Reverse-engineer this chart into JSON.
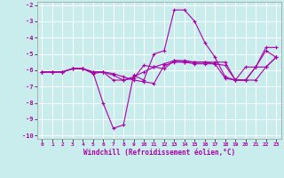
{
  "xlabel": "Windchill (Refroidissement éolien,°C)",
  "xlim": [
    -0.5,
    23.5
  ],
  "ylim": [
    -10.2,
    -1.8
  ],
  "yticks": [
    -10,
    -9,
    -8,
    -7,
    -6,
    -5,
    -4,
    -3,
    -2
  ],
  "xticks": [
    0,
    1,
    2,
    3,
    4,
    5,
    6,
    7,
    8,
    9,
    10,
    11,
    12,
    13,
    14,
    15,
    16,
    17,
    18,
    19,
    20,
    21,
    22,
    23
  ],
  "bg_color": "#c9eded",
  "line_color": "#aa00aa",
  "grid_color": "#ffffff",
  "series": [
    [
      [
        0,
        -6.1
      ],
      [
        1,
        -6.1
      ],
      [
        2,
        -6.1
      ],
      [
        3,
        -5.9
      ],
      [
        4,
        -5.9
      ],
      [
        5,
        -6.1
      ],
      [
        6,
        -8.0
      ],
      [
        7,
        -9.55
      ],
      [
        8,
        -9.35
      ],
      [
        9,
        -6.3
      ],
      [
        10,
        -6.6
      ],
      [
        11,
        -5.0
      ],
      [
        12,
        -4.8
      ],
      [
        13,
        -2.3
      ],
      [
        14,
        -2.3
      ],
      [
        15,
        -3.0
      ],
      [
        16,
        -4.3
      ],
      [
        17,
        -5.2
      ],
      [
        18,
        -6.4
      ],
      [
        19,
        -6.6
      ],
      [
        20,
        -5.8
      ],
      [
        21,
        -5.8
      ],
      [
        22,
        -4.8
      ],
      [
        23,
        -5.2
      ]
    ],
    [
      [
        0,
        -6.1
      ],
      [
        1,
        -6.1
      ],
      [
        2,
        -6.1
      ],
      [
        3,
        -5.9
      ],
      [
        4,
        -5.9
      ],
      [
        5,
        -6.1
      ],
      [
        6,
        -6.1
      ],
      [
        7,
        -6.2
      ],
      [
        8,
        -6.4
      ],
      [
        9,
        -6.6
      ],
      [
        10,
        -6.7
      ],
      [
        11,
        -6.8
      ],
      [
        12,
        -5.7
      ],
      [
        13,
        -5.5
      ],
      [
        14,
        -5.5
      ],
      [
        15,
        -5.5
      ],
      [
        16,
        -5.5
      ],
      [
        17,
        -5.5
      ],
      [
        18,
        -5.5
      ],
      [
        19,
        -6.6
      ],
      [
        20,
        -6.6
      ],
      [
        21,
        -6.6
      ],
      [
        22,
        -5.8
      ],
      [
        23,
        -5.2
      ]
    ],
    [
      [
        0,
        -6.1
      ],
      [
        1,
        -6.1
      ],
      [
        2,
        -6.1
      ],
      [
        3,
        -5.9
      ],
      [
        4,
        -5.9
      ],
      [
        5,
        -6.1
      ],
      [
        6,
        -6.1
      ],
      [
        7,
        -6.6
      ],
      [
        8,
        -6.6
      ],
      [
        9,
        -6.4
      ],
      [
        10,
        -6.1
      ],
      [
        11,
        -5.8
      ],
      [
        12,
        -5.6
      ],
      [
        13,
        -5.4
      ],
      [
        14,
        -5.4
      ],
      [
        15,
        -5.5
      ],
      [
        16,
        -5.5
      ],
      [
        17,
        -5.6
      ],
      [
        18,
        -5.7
      ],
      [
        19,
        -6.6
      ],
      [
        20,
        -6.6
      ],
      [
        21,
        -5.8
      ],
      [
        22,
        -4.6
      ],
      [
        23,
        -4.6
      ]
    ],
    [
      [
        0,
        -6.1
      ],
      [
        1,
        -6.1
      ],
      [
        2,
        -6.1
      ],
      [
        3,
        -5.9
      ],
      [
        4,
        -5.9
      ],
      [
        5,
        -6.2
      ],
      [
        6,
        -6.1
      ],
      [
        7,
        -6.3
      ],
      [
        8,
        -6.6
      ],
      [
        9,
        -6.5
      ],
      [
        10,
        -5.7
      ],
      [
        11,
        -5.8
      ],
      [
        12,
        -5.9
      ],
      [
        13,
        -5.4
      ],
      [
        14,
        -5.5
      ],
      [
        15,
        -5.6
      ],
      [
        16,
        -5.6
      ],
      [
        17,
        -5.6
      ],
      [
        18,
        -6.5
      ],
      [
        19,
        -6.6
      ],
      [
        20,
        -6.6
      ],
      [
        21,
        -5.8
      ],
      [
        22,
        -5.8
      ],
      [
        23,
        -5.2
      ]
    ]
  ]
}
